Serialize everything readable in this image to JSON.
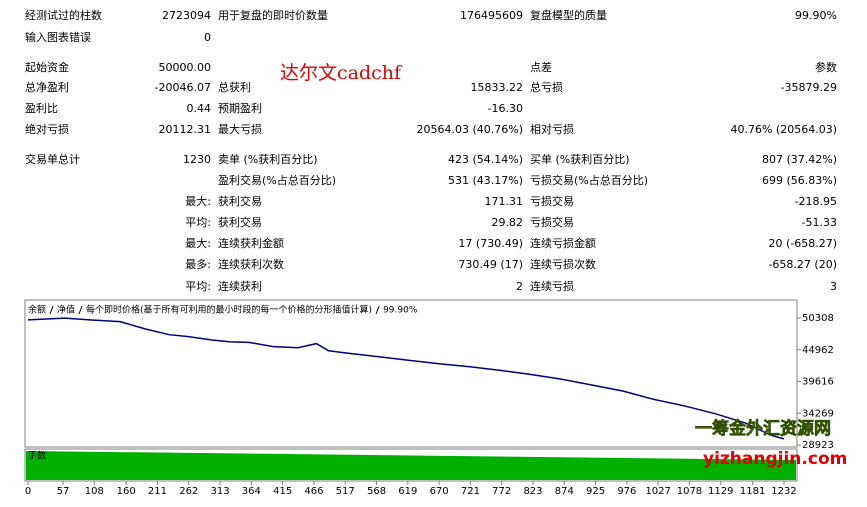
{
  "report": {
    "title": "达尔文cadchf",
    "rows": [
      [
        "经测试过的柱数",
        "2723094",
        "用于复盘的即时价数量",
        "176495609",
        "复盘模型的质量",
        "99.90%"
      ],
      [
        "输入图表错误",
        "0",
        null,
        null,
        null,
        null
      ],
      [
        "起始资金",
        "50000.00",
        null,
        null,
        "点差",
        "参数"
      ],
      [
        "总净盈利",
        "-20046.07",
        "总获利",
        "15833.22",
        "总亏损",
        "-35879.29"
      ],
      [
        "盈利比",
        "0.44",
        "预期盈利",
        "-16.30",
        null,
        null
      ],
      [
        "绝对亏损",
        "20112.31",
        "最大亏损",
        "20564.03 (40.76%)",
        "相对亏损",
        "40.76% (20564.03)"
      ],
      [
        "交易单总计",
        "1230",
        "卖单 (%获利百分比)",
        "423 (54.14%)",
        "买单 (%获利百分比)",
        "807 (37.42%)"
      ],
      [
        null,
        null,
        "盈利交易(%占总百分比)",
        "531 (43.17%)",
        "亏损交易(%占总百分比)",
        "699 (56.83%)"
      ],
      [
        null,
        "最大:",
        "获利交易",
        "171.31",
        "亏损交易",
        "-218.95"
      ],
      [
        null,
        "平均:",
        "获利交易",
        "29.82",
        "亏损交易",
        "-51.33"
      ],
      [
        null,
        "最大:",
        "连续获利金额",
        "17 (730.49)",
        "连续亏损金额",
        "20 (-658.27)"
      ],
      [
        null,
        "最多:",
        "连续获利次数",
        "730.49 (17)",
        "连续亏损次数",
        "-658.27 (20)"
      ],
      [
        null,
        "平均:",
        "连续获利",
        "2",
        "连续亏损",
        "3"
      ]
    ]
  },
  "chart_data": {
    "type": "line",
    "legend": [
      "余额",
      "净值",
      "每个即时价格(基于所有可利用的最小时段的每一个价格的分形插值计算)",
      "99.90%"
    ],
    "volume_label": "手数",
    "x": [
      0,
      60,
      100,
      150,
      190,
      230,
      260,
      300,
      330,
      360,
      400,
      440,
      470,
      490,
      520,
      570,
      620,
      670,
      720,
      770,
      820,
      870,
      920,
      970,
      1020,
      1070,
      1120,
      1170,
      1210,
      1232
    ],
    "series": [
      {
        "name": "余额",
        "color": "#00007f",
        "values": [
          50000,
          50300,
          50000,
          49700,
          48500,
          47500,
          47200,
          46600,
          46300,
          46200,
          45500,
          45300,
          46000,
          44800,
          44400,
          43800,
          43200,
          42600,
          42100,
          41500,
          40800,
          40000,
          39000,
          38000,
          36600,
          35500,
          34200,
          32600,
          30600,
          29954
        ]
      }
    ],
    "xlim": [
      0,
      1250
    ],
    "ylim": [
      28586,
      53343
    ],
    "xticks": [
      0,
      57,
      108,
      160,
      211,
      262,
      313,
      364,
      415,
      466,
      517,
      568,
      619,
      670,
      721,
      772,
      823,
      874,
      925,
      976,
      1027,
      1078,
      1129,
      1181,
      1232
    ],
    "yticks": [
      50308,
      44962,
      39616,
      34269,
      28923
    ],
    "watermark": [
      "一筹金外汇资源网",
      "yizhangjin.com"
    ]
  }
}
